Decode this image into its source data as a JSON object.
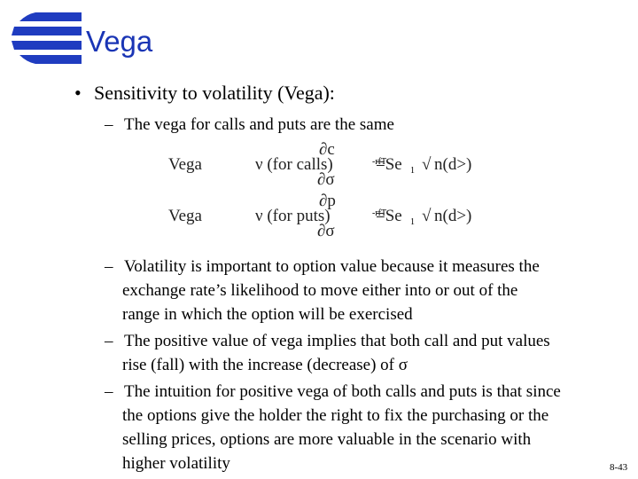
{
  "header": {
    "title": "Vega"
  },
  "bullet": "•",
  "dash": "–",
  "points": [
    {
      "text": "Sensitivity to volatility (Vega):",
      "subitems": [
        "The vega for calls and puts are the same"
      ]
    }
  ],
  "formulas": [
    {
      "lhs": "Vega",
      "expr": "ν (for calls)",
      "num": "∂c",
      "den": "∂σ",
      "exp": "-rfT",
      "rhs": "=Se",
      "sub": "1",
      "root": "√",
      "tail": "n(d>)"
    },
    {
      "lhs": "Vega",
      "expr": "ν (for puts)",
      "num": "∂p",
      "den": "∂σ",
      "exp": "-rfT",
      "rhs": "=Se",
      "sub": "1",
      "root": "√",
      "tail": "n(d>)"
    }
  ],
  "notes": [
    [
      "Volatility is important to option value because it measures the",
      "exchange rate’s likelihood to move either into or out of the",
      "range in which the option will be exercised"
    ],
    [
      "The positive value of vega implies that both call and put values",
      "rise (fall) with the increase (decrease) of σ"
    ],
    [
      "The intuition for positive vega of both calls and puts is that since",
      "the options give the holder the right to fix the purchasing or the",
      "selling prices, options are more valuable in the scenario with",
      "higher volatility"
    ]
  ],
  "page_number": "8-43"
}
